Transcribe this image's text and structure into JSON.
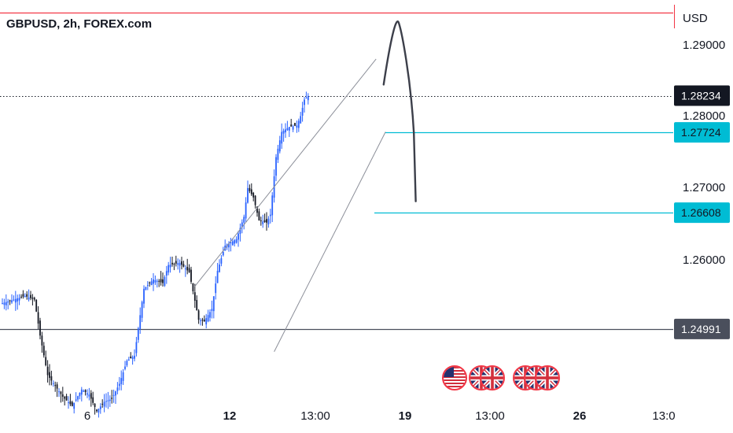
{
  "header": {
    "title": "GBPUSD, 2h, FOREX.com"
  },
  "axis": {
    "currency": "USD"
  },
  "chart_data": {
    "type": "candlestick",
    "symbol": "GBPUSD",
    "interval": "2h",
    "source": "FOREX.com",
    "ylim": [
      1.2375,
      1.2956
    ],
    "y_ticks": [
      "1.29000",
      "1.28000",
      "1.27000",
      "1.26000"
    ],
    "x_ticks": [
      "6",
      "12",
      "13:00",
      "19",
      "13:00",
      "26",
      "13:0"
    ],
    "price_tags": [
      {
        "label": "1.28234",
        "value": 1.28234,
        "style": "current",
        "bg": "#131722",
        "fg": "#ffffff"
      },
      {
        "label": "1.27724",
        "value": 1.27724,
        "style": "level",
        "bg": "#00bcd4",
        "fg": "#131722"
      },
      {
        "label": "1.26608",
        "value": 1.26608,
        "style": "level",
        "bg": "#00bcd4",
        "fg": "#131722"
      },
      {
        "label": "1.24991",
        "value": 1.24991,
        "style": "level",
        "bg": "#4a4f5c",
        "fg": "#ffffff"
      }
    ],
    "horizontal_lines": [
      {
        "value": 1.29384,
        "color": "#f23645"
      },
      {
        "value": 1.28234,
        "color": "#131722",
        "dash": true
      },
      {
        "value": 1.27724,
        "color": "#00bcd4"
      },
      {
        "value": 1.26608,
        "color": "#00bcd4"
      },
      {
        "value": 1.24991,
        "color": "#4a4f5c"
      }
    ],
    "channel": {
      "upper": [
        {
          "t": "2024-08-09T18:00",
          "p": 1.25585
        },
        {
          "t": "2024-08-17T18:00",
          "p": 1.28744
        }
      ],
      "lower": [
        {
          "t": "2024-08-13T06:00",
          "p": 1.24676
        },
        {
          "t": "2024-08-18T04:00",
          "p": 1.27731
        }
      ]
    },
    "projection": {
      "points": [
        {
          "t": "2024-08-18T02:00",
          "p": 1.28388
        },
        {
          "t": "2024-08-18T18:00",
          "p": 1.29246
        },
        {
          "t": "2024-08-19T10:00",
          "p": 1.27718
        },
        {
          "t": "2024-08-19T12:00",
          "p": 1.26766
        }
      ]
    },
    "events": [
      {
        "t": "2024-08-20T18:00",
        "flags": [
          "us"
        ]
      },
      {
        "t": "2024-08-21T18:00",
        "flags": [
          "gb",
          "gb"
        ]
      },
      {
        "t": "2024-08-22T18:00",
        "flags": [
          "gb",
          "gb",
          "gb"
        ]
      }
    ],
    "candles_summary": {
      "start": {
        "t": "2024-08-02T10:00",
        "p": 1.2535
      },
      "end": {
        "t": "2024-08-16T16:00",
        "p": 1.28234
      },
      "low": {
        "t": "2024-08-08T16:00",
        "p": 1.2385
      },
      "high": {
        "t": "2024-08-16T12:00",
        "p": 1.284
      }
    }
  }
}
